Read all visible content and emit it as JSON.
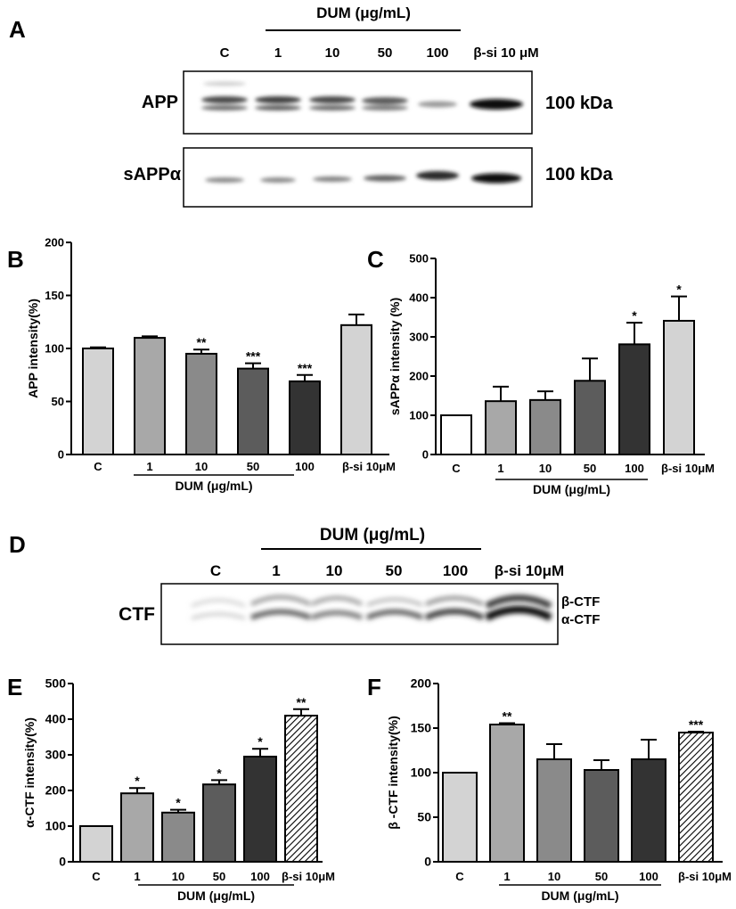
{
  "panels": {
    "A": {
      "letter": "A",
      "group_label": "DUM (μg/mL)",
      "lanes": [
        "C",
        "1",
        "10",
        "50",
        "100",
        "β-si 10 μM"
      ],
      "rows": [
        {
          "label": "APP",
          "size": "100 kDa"
        },
        {
          "label": "sAPPα",
          "size": "100 kDa"
        }
      ]
    },
    "D": {
      "letter": "D",
      "group_label": "DUM (μg/mL)",
      "lanes": [
        "C",
        "1",
        "10",
        "50",
        "100",
        "β-si 10μM"
      ],
      "row_label": "CTF",
      "band_labels": [
        "β-CTF",
        "α-CTF"
      ]
    }
  },
  "chart_data": [
    {
      "panel": "B",
      "letter": "B",
      "type": "bar",
      "ylabel": "APP  intensity(%)",
      "ylim": [
        0,
        200
      ],
      "yticks": [
        "0",
        "50",
        "100",
        "150",
        "200"
      ],
      "categories": [
        "C",
        "1",
        "10",
        "50",
        "100",
        "β-si 10μM"
      ],
      "values": [
        100,
        110,
        95,
        81,
        69,
        122
      ],
      "errors": [
        1,
        1.5,
        4,
        5,
        6,
        10
      ],
      "significance": [
        "",
        "",
        "**",
        "***",
        "***",
        ""
      ],
      "group_label": "DUM (μg/mL)",
      "colors": [
        "#d3d3d3",
        "#a8a8a8",
        "#8a8a8a",
        "#5c5c5c",
        "#333333",
        "#d3d3d3"
      ]
    },
    {
      "panel": "C",
      "letter": "C",
      "type": "bar",
      "ylabel": "sAPPα   intensity (%)",
      "ylim": [
        0,
        500
      ],
      "yticks": [
        "0",
        "100",
        "200",
        "300",
        "400",
        "500"
      ],
      "categories": [
        "C",
        "1",
        "10",
        "50",
        "100",
        "β-si 10μM"
      ],
      "values": [
        100,
        136,
        139,
        188,
        281,
        341
      ],
      "errors": [
        0,
        37,
        22,
        57,
        55,
        62
      ],
      "significance": [
        "",
        "",
        "",
        "",
        "*",
        "*"
      ],
      "group_label": "DUM (μg/mL)",
      "colors": [
        "#ffffff",
        "#a8a8a8",
        "#8a8a8a",
        "#5c5c5c",
        "#333333",
        "#d3d3d3"
      ]
    },
    {
      "panel": "E",
      "letter": "E",
      "type": "bar",
      "ylabel": "α-CTF intensity(%)",
      "ylim": [
        0,
        500
      ],
      "yticks": [
        "0",
        "100",
        "200",
        "300",
        "400",
        "500"
      ],
      "categories": [
        "C",
        "1",
        "10",
        "50",
        "100",
        "β-si 10μM"
      ],
      "values": [
        100,
        192,
        138,
        217,
        295,
        410
      ],
      "errors": [
        0,
        15,
        8,
        12,
        22,
        18
      ],
      "significance": [
        "",
        "*",
        "*",
        "*",
        "*",
        "**"
      ],
      "group_label": "DUM (μg/mL)",
      "colors": [
        "#d3d3d3",
        "#a8a8a8",
        "#8a8a8a",
        "#5c5c5c",
        "#333333",
        "hatch"
      ]
    },
    {
      "panel": "F",
      "letter": "F",
      "type": "bar",
      "ylabel": "β -CTF  intensity(%)",
      "ylim": [
        0,
        200
      ],
      "yticks": [
        "0",
        "50",
        "100",
        "150",
        "200"
      ],
      "categories": [
        "C",
        "1",
        "10",
        "50",
        "100",
        "β-si 10μM"
      ],
      "values": [
        100,
        154,
        115,
        103,
        115,
        145
      ],
      "errors": [
        0,
        1.5,
        17,
        11,
        22,
        1
      ],
      "significance": [
        "",
        "**",
        "",
        "",
        "",
        "***"
      ],
      "group_label": "DUM (μg/mL)",
      "colors": [
        "#d3d3d3",
        "#a8a8a8",
        "#8a8a8a",
        "#5c5c5c",
        "#333333",
        "hatch"
      ]
    }
  ]
}
